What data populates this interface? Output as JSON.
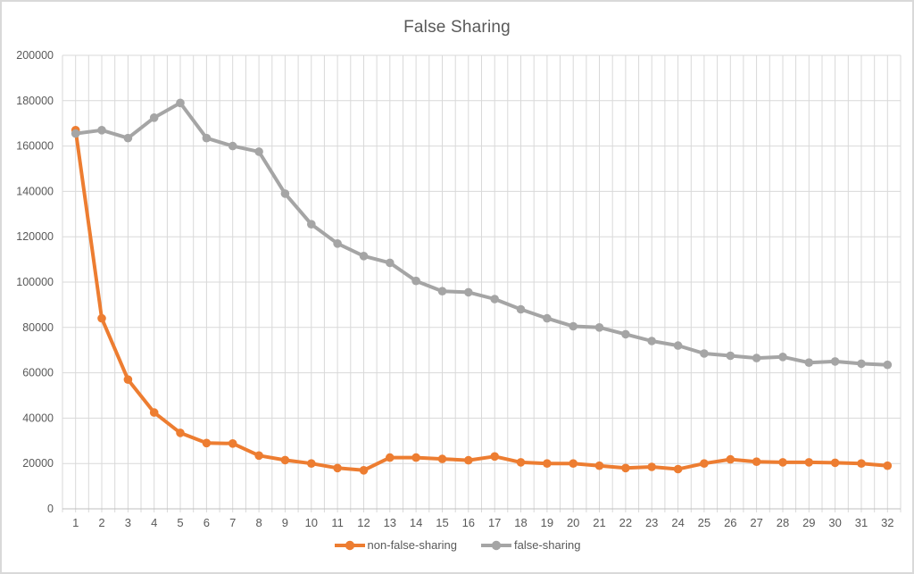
{
  "window": {
    "background": "#ffffff",
    "border_color": "#d9d9d9"
  },
  "styles": {
    "gridline_color": "#d9d9d9",
    "axis_line_color": "#bfbfbf",
    "label_color": "#595959",
    "title_color": "#595959"
  },
  "chart_data": {
    "type": "line",
    "title": "False Sharing",
    "xlabel": "",
    "ylabel": "",
    "grid": true,
    "legend_position": "bottom",
    "ylim": [
      0,
      200000
    ],
    "ytick_step": 20000,
    "yticks": [
      0,
      20000,
      40000,
      60000,
      80000,
      100000,
      120000,
      140000,
      160000,
      180000,
      200000
    ],
    "categories": [
      1,
      2,
      3,
      4,
      5,
      6,
      7,
      8,
      9,
      10,
      11,
      12,
      13,
      14,
      15,
      16,
      17,
      18,
      19,
      20,
      21,
      22,
      23,
      24,
      25,
      26,
      27,
      28,
      29,
      30,
      31,
      32
    ],
    "series": [
      {
        "name": "non-false-sharing",
        "color": "#ED7D31",
        "values": [
          167000,
          84000,
          57000,
          42500,
          33500,
          29000,
          28800,
          23500,
          21500,
          20000,
          18000,
          17000,
          22600,
          22600,
          22000,
          21400,
          23100,
          20500,
          20000,
          20000,
          19000,
          18000,
          18500,
          17500,
          20000,
          21800,
          20800,
          20500,
          20500,
          20300,
          20000,
          19000
        ]
      },
      {
        "name": "false-sharing",
        "color": "#A5A5A5",
        "values": [
          165500,
          167000,
          163500,
          172500,
          179000,
          163500,
          160000,
          157500,
          139000,
          125500,
          117000,
          111500,
          108500,
          100500,
          96000,
          95500,
          92500,
          88000,
          84000,
          80500,
          80000,
          77000,
          74000,
          72000,
          68500,
          67500,
          66500,
          67000,
          64500,
          65000,
          64000,
          63500
        ]
      }
    ]
  }
}
